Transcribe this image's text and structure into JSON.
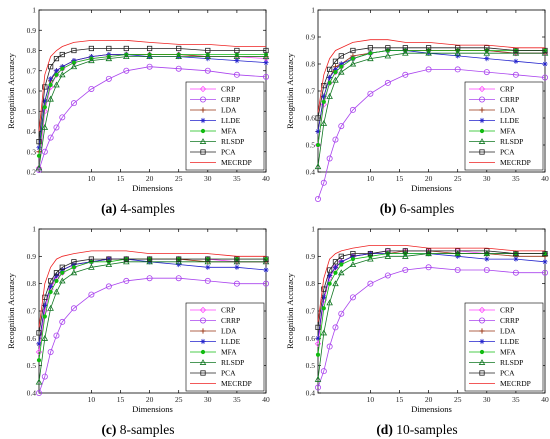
{
  "shared": {
    "xlabel": "Dimensions",
    "ylabel": "Recognition Accuracy",
    "x_ticks": [
      "10",
      "15",
      "20",
      "25",
      "30",
      "35",
      "40"
    ],
    "x_tick_values": [
      10,
      15,
      20,
      25,
      30,
      35,
      40
    ],
    "xlim": [
      1,
      40
    ],
    "legend": [
      "CRP",
      "CRRP",
      "LDA",
      "LLDE",
      "MFA",
      "RLSDP",
      "PCA",
      "MECRDP"
    ],
    "colors": {
      "CRP": "#ff44ff",
      "CRRP": "#aa44ee",
      "LDA": "#993311",
      "LLDE": "#2222cc",
      "MFA": "#11bb11",
      "RLSDP": "#117722",
      "PCA": "#222222",
      "MECRDP": "#ee2222"
    },
    "markers": {
      "CRP": "diamond",
      "CRRP": "circle",
      "LDA": "plus",
      "LLDE": "star",
      "MFA": "dot",
      "RLSDP": "triangle",
      "PCA": "square",
      "MECRDP": "none"
    }
  },
  "chart_data": [
    {
      "type": "line",
      "caption": {
        "label": "(a)",
        "text": " 4-samples"
      },
      "ylim": [
        0.2,
        1.0
      ],
      "y_ticks": [
        "0.2",
        "0.3",
        "0.4",
        "0.5",
        "0.6",
        "0.7",
        "0.8",
        "0.9",
        "1"
      ],
      "y_tick_values": [
        0.2,
        0.3,
        0.4,
        0.5,
        0.6,
        0.7,
        0.8,
        0.9,
        1.0
      ],
      "x": [
        1,
        2,
        3,
        4,
        5,
        7,
        10,
        13,
        16,
        20,
        25,
        30,
        35,
        40
      ],
      "series": [
        {
          "name": "CRP",
          "values": [
            0.22,
            0.5,
            0.62,
            0.68,
            0.71,
            0.74,
            0.76,
            0.77,
            0.78,
            0.78,
            0.78,
            0.77,
            0.77,
            0.76
          ]
        },
        {
          "name": "CRRP",
          "values": [
            0.21,
            0.3,
            0.37,
            0.42,
            0.47,
            0.54,
            0.61,
            0.66,
            0.7,
            0.72,
            0.71,
            0.7,
            0.68,
            0.67
          ]
        },
        {
          "name": "LDA",
          "values": [
            0.3,
            0.55,
            0.65,
            0.7,
            0.72,
            0.75,
            0.77,
            0.78,
            0.78,
            0.78,
            0.78,
            0.77,
            0.77,
            0.77
          ]
        },
        {
          "name": "LLDE",
          "values": [
            0.32,
            0.55,
            0.66,
            0.7,
            0.72,
            0.75,
            0.77,
            0.78,
            0.78,
            0.77,
            0.77,
            0.76,
            0.75,
            0.74
          ]
        },
        {
          "name": "MFA",
          "values": [
            0.28,
            0.52,
            0.63,
            0.68,
            0.71,
            0.74,
            0.76,
            0.77,
            0.78,
            0.78,
            0.78,
            0.78,
            0.78,
            0.78
          ]
        },
        {
          "name": "RLSDP",
          "values": [
            0.22,
            0.42,
            0.56,
            0.63,
            0.68,
            0.72,
            0.75,
            0.76,
            0.77,
            0.77,
            0.77,
            0.77,
            0.77,
            0.77
          ]
        },
        {
          "name": "PCA",
          "values": [
            0.35,
            0.62,
            0.72,
            0.76,
            0.78,
            0.8,
            0.81,
            0.81,
            0.81,
            0.81,
            0.81,
            0.8,
            0.8,
            0.8
          ]
        },
        {
          "name": "MECRDP",
          "values": [
            0.4,
            0.68,
            0.77,
            0.8,
            0.82,
            0.84,
            0.85,
            0.85,
            0.85,
            0.84,
            0.83,
            0.83,
            0.82,
            0.82
          ]
        }
      ]
    },
    {
      "type": "line",
      "caption": {
        "label": "(b)",
        "text": " 6-samples"
      },
      "ylim": [
        0.4,
        1.0
      ],
      "y_ticks": [
        "0.4",
        "0.5",
        "0.6",
        "0.7",
        "0.8",
        "0.9",
        "1"
      ],
      "y_tick_values": [
        0.4,
        0.5,
        0.6,
        0.7,
        0.8,
        0.9,
        1.0
      ],
      "x": [
        1,
        2,
        3,
        4,
        5,
        7,
        10,
        13,
        16,
        20,
        25,
        30,
        35,
        40
      ],
      "series": [
        {
          "name": "CRP",
          "values": [
            0.5,
            0.65,
            0.73,
            0.77,
            0.79,
            0.82,
            0.84,
            0.85,
            0.85,
            0.85,
            0.85,
            0.85,
            0.84,
            0.84
          ]
        },
        {
          "name": "CRRP",
          "values": [
            0.3,
            0.36,
            0.45,
            0.52,
            0.57,
            0.63,
            0.69,
            0.73,
            0.76,
            0.78,
            0.78,
            0.77,
            0.76,
            0.75
          ]
        },
        {
          "name": "LDA",
          "values": [
            0.55,
            0.68,
            0.75,
            0.79,
            0.8,
            0.83,
            0.84,
            0.85,
            0.85,
            0.85,
            0.85,
            0.85,
            0.84,
            0.84
          ]
        },
        {
          "name": "LLDE",
          "values": [
            0.55,
            0.68,
            0.75,
            0.78,
            0.8,
            0.82,
            0.84,
            0.85,
            0.85,
            0.84,
            0.83,
            0.82,
            0.81,
            0.8
          ]
        },
        {
          "name": "MFA",
          "values": [
            0.5,
            0.66,
            0.73,
            0.77,
            0.79,
            0.82,
            0.84,
            0.85,
            0.85,
            0.85,
            0.85,
            0.85,
            0.85,
            0.85
          ]
        },
        {
          "name": "RLSDP",
          "values": [
            0.42,
            0.58,
            0.68,
            0.74,
            0.77,
            0.8,
            0.82,
            0.83,
            0.84,
            0.84,
            0.84,
            0.84,
            0.84,
            0.84
          ]
        },
        {
          "name": "PCA",
          "values": [
            0.6,
            0.72,
            0.78,
            0.81,
            0.83,
            0.85,
            0.86,
            0.86,
            0.86,
            0.86,
            0.86,
            0.86,
            0.85,
            0.85
          ]
        },
        {
          "name": "MECRDP",
          "values": [
            0.62,
            0.76,
            0.82,
            0.85,
            0.86,
            0.88,
            0.89,
            0.89,
            0.88,
            0.88,
            0.87,
            0.87,
            0.86,
            0.86
          ]
        }
      ]
    },
    {
      "type": "line",
      "caption": {
        "label": "(c)",
        "text": " 8-samples"
      },
      "ylim": [
        0.4,
        1.0
      ],
      "y_ticks": [
        "0.4",
        "0.5",
        "0.6",
        "0.7",
        "0.8",
        "0.9",
        "1"
      ],
      "y_tick_values": [
        0.4,
        0.5,
        0.6,
        0.7,
        0.8,
        0.9,
        1.0
      ],
      "x": [
        1,
        2,
        3,
        4,
        5,
        7,
        10,
        13,
        16,
        20,
        25,
        30,
        35,
        40
      ],
      "series": [
        {
          "name": "CRP",
          "values": [
            0.55,
            0.7,
            0.78,
            0.82,
            0.84,
            0.86,
            0.88,
            0.89,
            0.89,
            0.89,
            0.89,
            0.89,
            0.88,
            0.88
          ]
        },
        {
          "name": "CRRP",
          "values": [
            0.4,
            0.46,
            0.55,
            0.61,
            0.66,
            0.71,
            0.76,
            0.79,
            0.81,
            0.82,
            0.82,
            0.81,
            0.8,
            0.8
          ]
        },
        {
          "name": "LDA",
          "values": [
            0.58,
            0.72,
            0.79,
            0.83,
            0.85,
            0.87,
            0.88,
            0.89,
            0.89,
            0.89,
            0.89,
            0.88,
            0.88,
            0.88
          ]
        },
        {
          "name": "LLDE",
          "values": [
            0.58,
            0.72,
            0.79,
            0.83,
            0.85,
            0.87,
            0.88,
            0.89,
            0.89,
            0.88,
            0.87,
            0.86,
            0.86,
            0.85
          ]
        },
        {
          "name": "MFA",
          "values": [
            0.52,
            0.68,
            0.77,
            0.81,
            0.84,
            0.86,
            0.88,
            0.88,
            0.89,
            0.89,
            0.89,
            0.89,
            0.89,
            0.89
          ]
        },
        {
          "name": "RLSDP",
          "values": [
            0.44,
            0.6,
            0.71,
            0.77,
            0.81,
            0.84,
            0.86,
            0.87,
            0.88,
            0.88,
            0.88,
            0.88,
            0.88,
            0.88
          ]
        },
        {
          "name": "PCA",
          "values": [
            0.62,
            0.75,
            0.81,
            0.84,
            0.86,
            0.88,
            0.89,
            0.89,
            0.89,
            0.89,
            0.89,
            0.89,
            0.89,
            0.89
          ]
        },
        {
          "name": "MECRDP",
          "values": [
            0.64,
            0.8,
            0.86,
            0.89,
            0.9,
            0.91,
            0.92,
            0.92,
            0.92,
            0.91,
            0.91,
            0.91,
            0.9,
            0.9
          ]
        }
      ]
    },
    {
      "type": "line",
      "caption": {
        "label": "(d)",
        "text": " 10-samples"
      },
      "ylim": [
        0.4,
        1.0
      ],
      "y_ticks": [
        "0.4",
        "0.5",
        "0.6",
        "0.7",
        "0.8",
        "0.9",
        "1"
      ],
      "y_tick_values": [
        0.4,
        0.5,
        0.6,
        0.7,
        0.8,
        0.9,
        1.0
      ],
      "x": [
        1,
        2,
        3,
        4,
        5,
        7,
        10,
        13,
        16,
        20,
        25,
        30,
        35,
        40
      ],
      "series": [
        {
          "name": "CRP",
          "values": [
            0.58,
            0.74,
            0.82,
            0.86,
            0.88,
            0.9,
            0.91,
            0.92,
            0.92,
            0.92,
            0.92,
            0.91,
            0.91,
            0.91
          ]
        },
        {
          "name": "CRRP",
          "values": [
            0.42,
            0.48,
            0.57,
            0.64,
            0.69,
            0.75,
            0.8,
            0.83,
            0.85,
            0.86,
            0.85,
            0.85,
            0.84,
            0.84
          ]
        },
        {
          "name": "LDA",
          "values": [
            0.6,
            0.75,
            0.83,
            0.86,
            0.88,
            0.9,
            0.91,
            0.91,
            0.92,
            0.92,
            0.91,
            0.91,
            0.9,
            0.9
          ]
        },
        {
          "name": "LLDE",
          "values": [
            0.6,
            0.75,
            0.83,
            0.86,
            0.88,
            0.9,
            0.91,
            0.91,
            0.91,
            0.91,
            0.9,
            0.89,
            0.89,
            0.88
          ]
        },
        {
          "name": "MFA",
          "values": [
            0.54,
            0.71,
            0.8,
            0.84,
            0.87,
            0.89,
            0.9,
            0.91,
            0.91,
            0.91,
            0.91,
            0.91,
            0.91,
            0.91
          ]
        },
        {
          "name": "RLSDP",
          "values": [
            0.45,
            0.62,
            0.73,
            0.8,
            0.84,
            0.87,
            0.89,
            0.9,
            0.9,
            0.91,
            0.91,
            0.91,
            0.91,
            0.91
          ]
        },
        {
          "name": "PCA",
          "values": [
            0.64,
            0.78,
            0.85,
            0.88,
            0.9,
            0.91,
            0.91,
            0.92,
            0.92,
            0.92,
            0.92,
            0.92,
            0.91,
            0.91
          ]
        },
        {
          "name": "MECRDP",
          "values": [
            0.66,
            0.82,
            0.89,
            0.91,
            0.92,
            0.93,
            0.94,
            0.94,
            0.94,
            0.93,
            0.93,
            0.93,
            0.92,
            0.92
          ]
        }
      ]
    }
  ]
}
